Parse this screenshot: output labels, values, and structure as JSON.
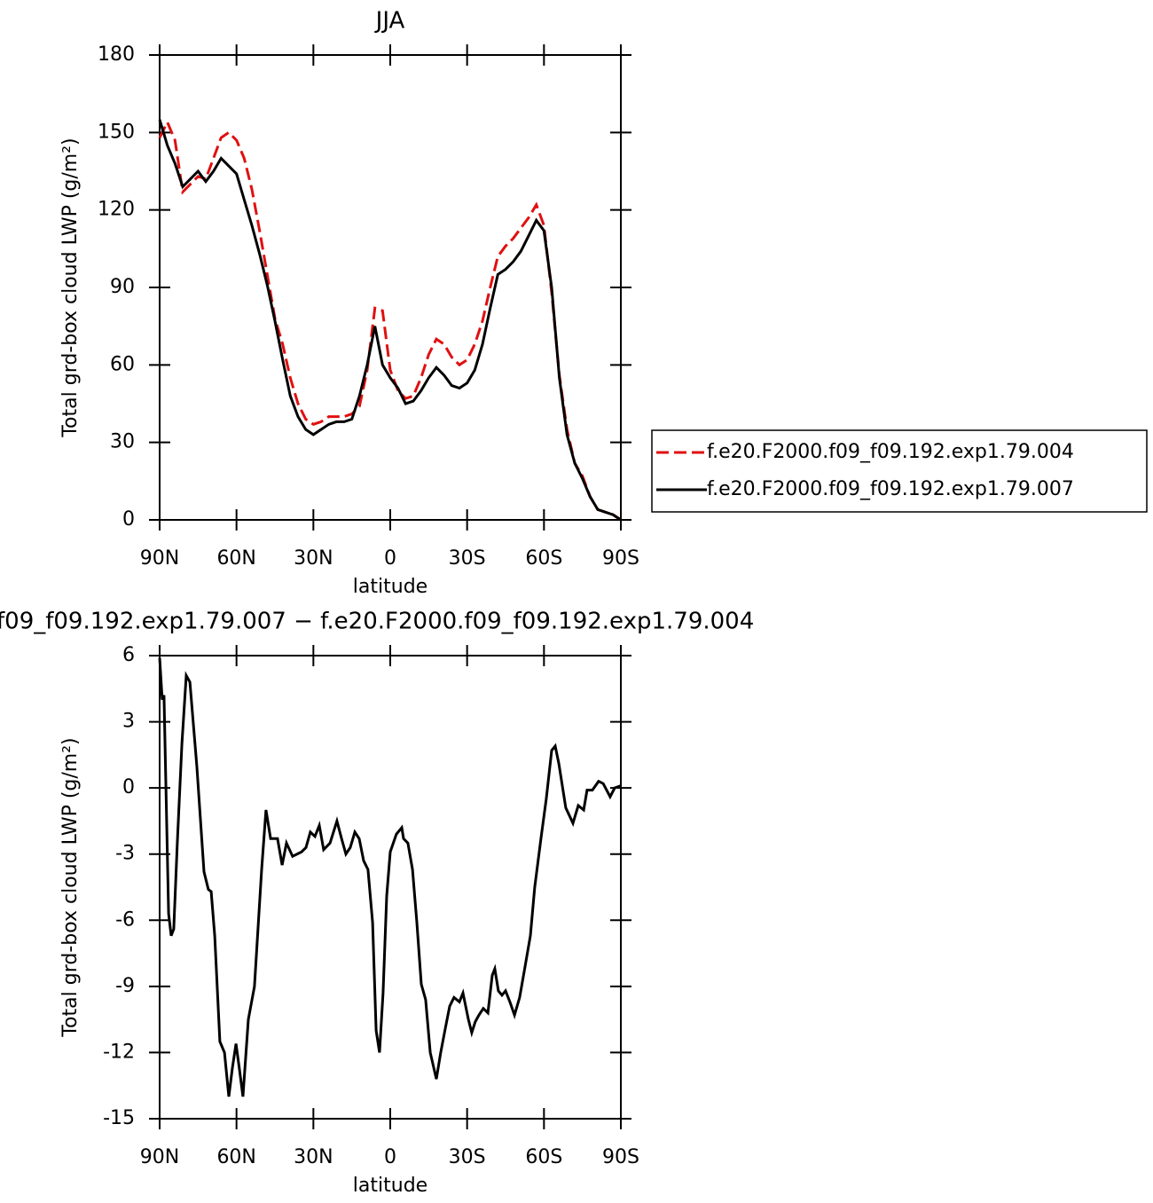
{
  "chart_data": [
    {
      "type": "line",
      "title": "JJA",
      "xlabel": "latitude",
      "ylabel": "Total grd-box cloud LWP (g/m²)",
      "x": [
        90,
        87,
        84,
        81,
        78,
        75,
        72,
        69,
        66,
        63,
        60,
        57,
        54,
        51,
        48,
        45,
        42,
        39,
        36,
        33,
        30,
        27,
        24,
        21,
        18,
        15,
        12,
        9,
        6,
        3,
        0,
        -3,
        -6,
        -9,
        -12,
        -15,
        -18,
        -21,
        -24,
        -27,
        -30,
        -33,
        -36,
        -39,
        -42,
        -45,
        -48,
        -51,
        -54,
        -57,
        -60,
        -63,
        -66,
        -69,
        -72,
        -75,
        -78,
        -81,
        -84,
        -87,
        -90
      ],
      "series": [
        {
          "name": "f.e20.F2000.f09_f09.192.exp1.79.004",
          "color": "#e01010",
          "dash": true,
          "values": [
            148,
            154,
            147,
            127,
            130,
            133,
            132,
            140,
            148,
            150,
            147,
            140,
            128,
            112,
            95,
            78,
            68,
            55,
            45,
            39,
            37,
            38,
            40,
            40,
            40,
            41,
            44,
            58,
            82,
            81,
            58,
            50,
            47,
            48,
            55,
            64,
            70,
            68,
            63,
            60,
            62,
            68,
            77,
            90,
            102,
            106,
            109,
            113,
            117,
            122,
            114,
            88,
            56,
            35,
            22,
            17,
            9,
            4,
            3,
            2,
            0
          ]
        },
        {
          "name": "f.e20.F2000.f09_f09.192.exp1.79.007",
          "color": "#000000",
          "dash": false,
          "values": [
            155,
            145,
            138,
            129,
            132,
            135,
            131,
            135,
            140,
            137,
            134,
            124,
            114,
            103,
            91,
            77,
            62,
            48,
            40,
            35,
            33,
            35,
            37,
            38,
            38,
            39,
            48,
            60,
            75,
            60,
            55,
            51,
            45,
            46,
            50,
            55,
            59,
            56,
            52,
            51,
            53,
            58,
            68,
            82,
            95,
            97,
            100,
            104,
            110,
            116,
            112,
            90,
            55,
            33,
            22,
            16,
            9,
            4,
            3,
            2,
            0
          ]
        }
      ],
      "xlim": [
        90,
        -90
      ],
      "xticks": [
        {
          "value": 90,
          "label": "90N"
        },
        {
          "value": 60,
          "label": "60N"
        },
        {
          "value": 30,
          "label": "30N"
        },
        0,
        {
          "value": -30,
          "label": "30S"
        },
        {
          "value": -60,
          "label": "60S"
        },
        {
          "value": -90,
          "label": "90S"
        }
      ],
      "ylim": [
        0,
        180
      ],
      "yticks": [
        0,
        30,
        60,
        90,
        120,
        150,
        180
      ],
      "legend": "right"
    },
    {
      "type": "line",
      "title": "f09_f09.192.exp1.79.007 − f.e20.F2000.f09_f09.192.exp1.79.004",
      "xlabel": "latitude",
      "ylabel": "Total grd-box cloud LWP (g/m²)",
      "x": [
        90,
        89,
        88.3,
        86.5,
        85.5,
        84.5,
        83.1,
        81.3,
        79.6,
        78.2,
        75.5,
        72.7,
        71,
        69.9,
        68.5,
        66.5,
        64.7,
        63,
        61.6,
        60.2,
        58.8,
        57.5,
        55.4,
        53,
        50.2,
        48.5,
        46.7,
        44,
        42.2,
        40.5,
        38.1,
        34.6,
        32.9,
        31.2,
        29.4,
        27.7,
        26,
        23.5,
        20.8,
        19,
        17.3,
        15.6,
        13.8,
        12.1,
        10.4,
        8.7,
        6.9,
        5.5,
        4.2,
        2.8,
        1.4,
        0,
        -2.4,
        -4.5,
        -5.2,
        -6.9,
        -8.7,
        -10.4,
        -12.1,
        -13.8,
        -15.6,
        -18,
        -19.7,
        -21.5,
        -23.2,
        -24.9,
        -27,
        -28.4,
        -30.5,
        -31.8,
        -33.2,
        -34.6,
        -36.3,
        -38.1,
        -39.8,
        -40.8,
        -42.2,
        -43.6,
        -45,
        -46.7,
        -48.5,
        -50.5,
        -52.6,
        -54.7,
        -56.4,
        -58.8,
        -60.9,
        -63,
        -64.4,
        -65.8,
        -68.5,
        -71.3,
        -73.4,
        -75.5,
        -76.8,
        -78.9,
        -81.3,
        -83.1,
        -85.8,
        -87.6,
        -90
      ],
      "series": [
        {
          "name": null,
          "color": "#000000",
          "dash": false,
          "values": [
            5.9,
            4,
            4.2,
            -5.7,
            -6.7,
            -6.4,
            -2.5,
            2,
            5.1,
            4.8,
            1,
            -3.8,
            -4.6,
            -4.7,
            -6.7,
            -11.5,
            -12,
            -14,
            -12.7,
            -11.6,
            -12.8,
            -14,
            -10.5,
            -9,
            -3.7,
            -1,
            -2.3,
            -2.3,
            -3.5,
            -2.5,
            -3.1,
            -2.9,
            -2.7,
            -2,
            -2.2,
            -1.7,
            -2.8,
            -2.5,
            -1.5,
            -2.3,
            -3,
            -2.7,
            -2,
            -2.3,
            -3.3,
            -3.7,
            -6.1,
            -11,
            -12,
            -9.3,
            -4.9,
            -2.9,
            -2.1,
            -1.8,
            -2.3,
            -2.5,
            -3.7,
            -6.1,
            -8.9,
            -9.6,
            -12,
            -13.2,
            -12,
            -10.9,
            -9.9,
            -9.5,
            -9.7,
            -9.3,
            -10.5,
            -11.1,
            -10.6,
            -10.3,
            -10,
            -10.2,
            -8.5,
            -8.2,
            -9.2,
            -9.4,
            -9.2,
            -9.7,
            -10.3,
            -9.5,
            -8.1,
            -6.7,
            -4.5,
            -2.3,
            -0.5,
            1.7,
            1.9,
            1.1,
            -0.9,
            -1.6,
            -0.8,
            -1,
            -0.1,
            -0.1,
            0.3,
            0.2,
            -0.4,
            0,
            0.1
          ]
        }
      ],
      "xlim": [
        90,
        -90
      ],
      "xticks": [
        {
          "value": 90,
          "label": "90N"
        },
        {
          "value": 60,
          "label": "60N"
        },
        {
          "value": 30,
          "label": "30N"
        },
        0,
        {
          "value": -30,
          "label": "30S"
        },
        {
          "value": -60,
          "label": "60S"
        },
        {
          "value": -90,
          "label": "90S"
        }
      ],
      "ylim": [
        -15,
        6
      ],
      "yticks": [
        -15,
        -12,
        -9,
        -6,
        -3,
        0,
        3,
        6
      ]
    }
  ]
}
